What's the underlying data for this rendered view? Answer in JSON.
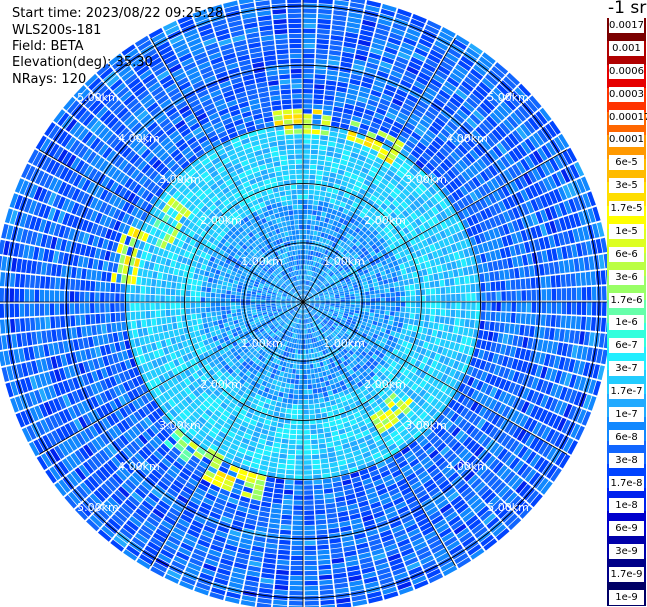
{
  "info": {
    "start_time": "Start time: 2023/08/22 09:25:28",
    "instrument": "WLS200s-181",
    "field": "Field: BETA",
    "elevation": "Elevation(deg): 35.30",
    "nrays": "NRays: 120"
  },
  "chart_data": {
    "type": "heatmap",
    "projection": "polar-ppi",
    "unit_label": "-1 sr",
    "n_rays": 120,
    "range_max_km": 6,
    "range_rings_km": [
      1,
      2,
      3,
      4,
      5
    ],
    "range_labels": [
      "1.00km",
      "2.00km",
      "3.00km",
      "4.00km",
      "5.00km"
    ],
    "spokes_deg": [
      0,
      30,
      60,
      90,
      120,
      150,
      180,
      210,
      240,
      270,
      300,
      330
    ],
    "grid": true,
    "colorbar": {
      "placement": "right",
      "ticks": [
        "0.0017",
        "0.001",
        "0.0006",
        "0.0003",
        "0.00017",
        "0.0001",
        "6e-5",
        "3e-5",
        "1.7e-5",
        "1e-5",
        "6e-6",
        "3e-6",
        "1.7e-6",
        "1e-6",
        "6e-7",
        "3e-7",
        "1.7e-7",
        "1e-7",
        "6e-8",
        "3e-8",
        "1.7e-8",
        "1e-8",
        "6e-9",
        "3e-9",
        "1.7e-9",
        "1e-9"
      ],
      "colors": [
        "#7a0000",
        "#b00000",
        "#e60000",
        "#ff3300",
        "#ff6600",
        "#ff9900",
        "#ffbb00",
        "#ffdd00",
        "#ffff00",
        "#ddff22",
        "#bbff44",
        "#99ff66",
        "#66ffaa",
        "#33ffdd",
        "#22eeff",
        "#22ccff",
        "#22aaff",
        "#1188ff",
        "#1166ff",
        "#0044ff",
        "#0022ee",
        "#0000cc",
        "#0000aa",
        "#000088",
        "#000066"
      ]
    },
    "structure": {
      "inner_ring_range_km": [
        0,
        1.7
      ],
      "inner_ring_level": "1.7e-7",
      "middle_range_km": [
        1.7,
        3.0
      ],
      "middle_level": "3e-7",
      "outer_range_km": [
        3.0,
        5.7
      ],
      "outer_level": "6e-8",
      "hotspots": [
        {
          "azimuth_deg": 0,
          "range_km": 3.0,
          "level": "1e-5"
        },
        {
          "azimuth_deg": 25,
          "range_km": 2.9,
          "level": "1e-5"
        },
        {
          "azimuth_deg": 140,
          "range_km": 2.3,
          "level": "6e-6"
        },
        {
          "azimuth_deg": 200,
          "range_km": 3.2,
          "level": "1e-5"
        },
        {
          "azimuth_deg": 215,
          "range_km": 3.1,
          "level": "3e-6"
        },
        {
          "azimuth_deg": 285,
          "range_km": 3.0,
          "level": "1e-5"
        },
        {
          "azimuth_deg": 300,
          "range_km": 2.6,
          "level": "3e-6"
        }
      ]
    }
  }
}
